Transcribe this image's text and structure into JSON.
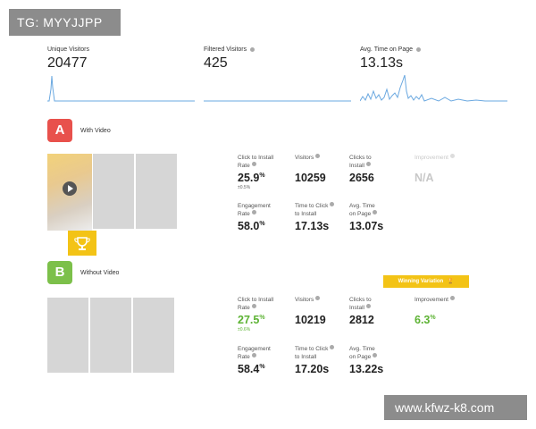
{
  "watermarks": {
    "top_left": "TG: MYYJJPP",
    "bottom_right": "www.kfwz-k8.com"
  },
  "kpis": [
    {
      "label": "Unique Visitors",
      "value": "20477",
      "has_info": false
    },
    {
      "label": "Filtered Visitors",
      "value": "425",
      "has_info": true
    },
    {
      "label": "Avg. Time on Page",
      "value": "13.13s",
      "has_info": true
    }
  ],
  "sparklines": {
    "color": "#6aa8e0"
  },
  "variants": {
    "a": {
      "badge": "A",
      "badge_color": "#e8514c",
      "name": "With Video",
      "ctr_label": [
        "Click to Install",
        "Rate"
      ],
      "ctr_value": "25.9",
      "ctr_unit": "%",
      "ctr_sub": "±0.5%",
      "visitors_label": "Visitors",
      "visitors_value": "10259",
      "clicks_label": [
        "Clicks to",
        "Install"
      ],
      "clicks_value": "2656",
      "improvement_label": "Improvement",
      "improvement_value": "N/A",
      "engagement_label": [
        "Engagement",
        "Rate"
      ],
      "engagement_value": "58.0",
      "engagement_unit": "%",
      "ttc_label": [
        "Time to Click",
        "to Install"
      ],
      "ttc_value": "17.13s",
      "avg_label": [
        "Avg. Time",
        "on Page"
      ],
      "avg_value": "13.07s"
    },
    "b": {
      "badge": "B",
      "badge_color": "#7cc04a",
      "name": "Without Video",
      "ribbon": "Winning Variation",
      "ctr_label": [
        "Click to Install",
        "Rate"
      ],
      "ctr_value": "27.5",
      "ctr_unit": "%",
      "ctr_sub": "±0.6%",
      "visitors_label": "Visitors",
      "visitors_value": "10219",
      "clicks_label": [
        "Clicks to",
        "Install"
      ],
      "clicks_value": "2812",
      "improvement_label": "Improvement",
      "improvement_value": "6.3",
      "improvement_unit": "%",
      "engagement_label": [
        "Engagement",
        "Rate"
      ],
      "engagement_value": "58.4",
      "engagement_unit": "%",
      "ttc_label": [
        "Time to Click",
        "to Install"
      ],
      "ttc_value": "17.20s",
      "avg_label": [
        "Avg. Time",
        "on Page"
      ],
      "avg_value": "13.22s"
    }
  },
  "colors": {
    "winner": "#5db334",
    "gold": "#f3c316",
    "thumbnail": "#d6d6d6"
  }
}
